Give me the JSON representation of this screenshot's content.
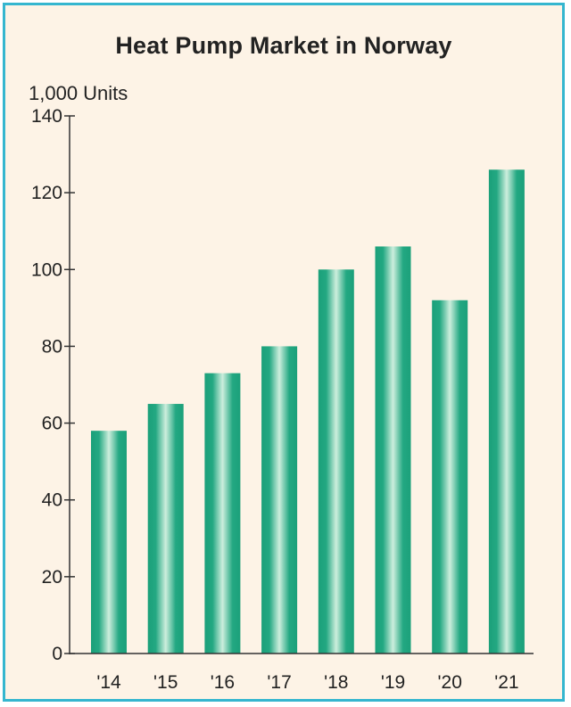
{
  "chart_data": {
    "type": "bar",
    "title": "Heat Pump Market in Norway",
    "ylabel": "1,000 Units",
    "xlabel": "",
    "categories": [
      "'14",
      "'15",
      "'16",
      "'17",
      "'18",
      "'19",
      "'20",
      "'21"
    ],
    "values": [
      58,
      65,
      73,
      80,
      100,
      106,
      92,
      126
    ],
    "ylim": [
      0,
      140
    ],
    "yticks": [
      0,
      20,
      40,
      60,
      80,
      100,
      120,
      140
    ],
    "grid": false,
    "legend": "none"
  },
  "colors": {
    "background": "#fdf3e6",
    "border": "#35b6cf",
    "bar_edge": "#1ba07a",
    "bar_center": "#cdeedd",
    "axis": "#333333"
  }
}
